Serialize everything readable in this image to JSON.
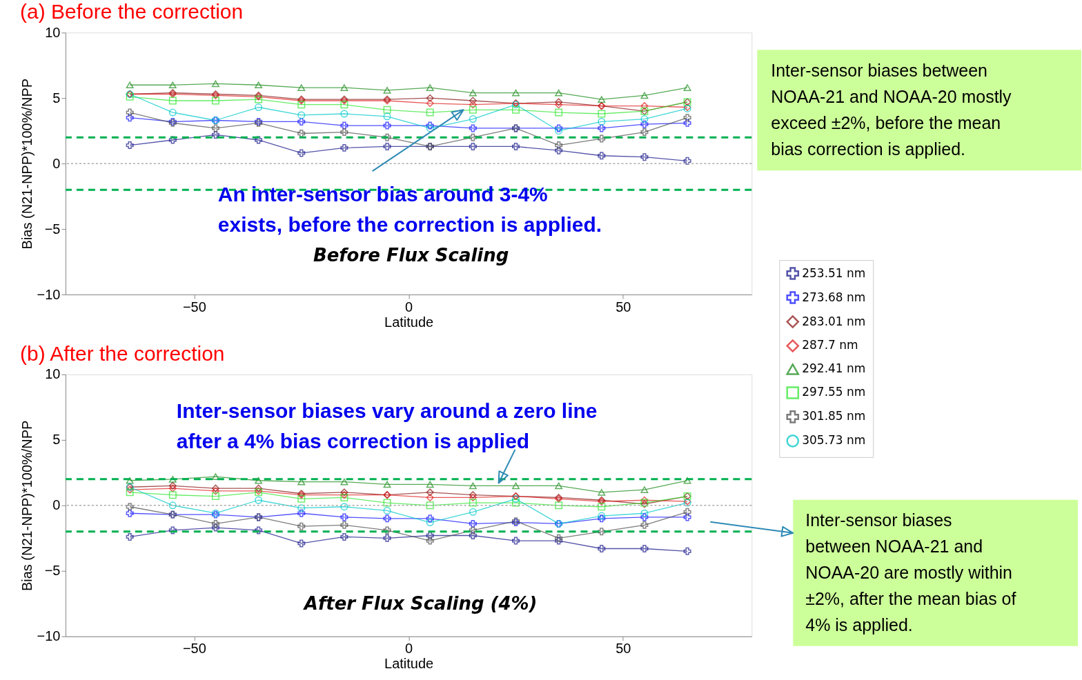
{
  "chart_data": [
    {
      "type": "line",
      "title": "(a) Before the correction",
      "xlabel": "Latitude",
      "ylabel": "Bias (N21-NPP)*100%/NPP",
      "x": [
        -65,
        -55,
        -45,
        -35,
        -25,
        -15,
        -5,
        5,
        15,
        25,
        35,
        45,
        55,
        65
      ],
      "xlim": [
        -80,
        80
      ],
      "xticks": [
        -50,
        0,
        50
      ],
      "ylim": [
        -10,
        10
      ],
      "yticks": [
        -10,
        -5,
        0,
        5,
        10
      ],
      "grid": false,
      "legend": "right",
      "line_style": "solid",
      "series": [
        {
          "name": "253.51 nm",
          "color": "#1a1a8c",
          "marker": "cross",
          "values": [
            1.4,
            1.8,
            2.2,
            1.8,
            0.8,
            1.2,
            1.3,
            1.3,
            1.3,
            1.3,
            1.0,
            0.6,
            0.5,
            0.2
          ]
        },
        {
          "name": "273.68 nm",
          "color": "#1414ff",
          "marker": "cross",
          "values": [
            3.5,
            3.2,
            3.3,
            3.2,
            3.2,
            2.9,
            2.9,
            2.9,
            2.7,
            2.7,
            2.7,
            2.7,
            3.0,
            3.1
          ]
        },
        {
          "name": "283.01 nm",
          "color": "#8b1a1a",
          "marker": "diamond",
          "values": [
            5.3,
            5.4,
            5.3,
            5.2,
            4.9,
            4.9,
            4.9,
            5.0,
            4.8,
            4.6,
            4.7,
            4.4,
            4.0,
            4.7
          ]
        },
        {
          "name": "287.7 nm",
          "color": "#e02020",
          "marker": "diamond",
          "values": [
            5.3,
            5.3,
            5.2,
            5.1,
            4.8,
            4.8,
            4.8,
            4.6,
            4.5,
            4.6,
            4.5,
            4.4,
            4.4,
            4.3
          ]
        },
        {
          "name": "292.41 nm",
          "color": "#1e8c1e",
          "marker": "triangle",
          "values": [
            6.0,
            6.0,
            6.1,
            6.0,
            5.8,
            5.8,
            5.6,
            5.8,
            5.4,
            5.4,
            5.4,
            4.9,
            5.2,
            5.8
          ]
        },
        {
          "name": "297.55 nm",
          "color": "#33e633",
          "marker": "square",
          "values": [
            5.1,
            4.8,
            4.8,
            4.9,
            4.5,
            4.5,
            4.1,
            3.9,
            4.1,
            4.1,
            3.9,
            3.8,
            4.0,
            4.7
          ]
        },
        {
          "name": "301.85 nm",
          "color": "#505050",
          "marker": "cross",
          "values": [
            3.9,
            3.1,
            2.7,
            3.1,
            2.3,
            2.4,
            2.0,
            1.3,
            2.0,
            2.7,
            1.4,
            1.9,
            2.4,
            3.5
          ]
        },
        {
          "name": "305.73 nm",
          "color": "#00c8c8",
          "marker": "circle",
          "values": [
            5.3,
            3.9,
            3.3,
            4.3,
            3.7,
            3.8,
            3.6,
            2.7,
            3.4,
            4.5,
            2.5,
            3.2,
            3.4,
            4.2
          ]
        }
      ],
      "ref_lines": [
        {
          "axis": "y",
          "value": 2,
          "color": "#00b050",
          "line_style": "dashed"
        },
        {
          "axis": "y",
          "value": -2,
          "color": "#00b050",
          "line_style": "dashed"
        },
        {
          "axis": "y",
          "value": 0,
          "color": "#aaaaaa",
          "line_style": "dotted"
        }
      ],
      "annotations": [
        {
          "text": "An inter-sensor bias around 3-4%\nexists, before the correction is applied.",
          "x": 12.8,
          "y": 4.1
        },
        "Before Flux Scaling",
        "Inter-sensor biases between\nNOAA-21 and NOAA-20 mostly\nexceed ±2%, before the mean\nbias correction is applied."
      ]
    },
    {
      "type": "line",
      "title": "(b) After the correction",
      "xlabel": "Latitude",
      "ylabel": "Bias (N21-NPP)*100%/NPP",
      "x": [
        -65,
        -55,
        -45,
        -35,
        -25,
        -15,
        -5,
        5,
        15,
        25,
        35,
        45,
        55,
        65
      ],
      "xlim": [
        -80,
        80
      ],
      "xticks": [
        -50,
        0,
        50
      ],
      "ylim": [
        -10,
        10
      ],
      "yticks": [
        -10,
        -5,
        0,
        5,
        10
      ],
      "grid": false,
      "legend": "right",
      "line_style": "solid",
      "series": [
        {
          "name": "253.51 nm",
          "color": "#1a1a8c",
          "marker": "cross",
          "values": [
            -2.4,
            -1.9,
            -1.7,
            -1.9,
            -2.9,
            -2.4,
            -2.5,
            -2.3,
            -2.3,
            -2.7,
            -2.7,
            -3.3,
            -3.3,
            -3.5
          ]
        },
        {
          "name": "273.68 nm",
          "color": "#1414ff",
          "marker": "cross",
          "values": [
            -0.6,
            -0.7,
            -0.7,
            -0.9,
            -0.6,
            -0.9,
            -1.0,
            -1.0,
            -1.4,
            -1.3,
            -1.4,
            -1.0,
            -0.9,
            -0.9
          ]
        },
        {
          "name": "283.01 nm",
          "color": "#8b1a1a",
          "marker": "diamond",
          "values": [
            1.4,
            1.5,
            1.3,
            1.3,
            0.9,
            1.0,
            0.8,
            1.0,
            0.8,
            0.7,
            0.6,
            0.4,
            0.1,
            0.7
          ]
        },
        {
          "name": "287.7 nm",
          "color": "#e02020",
          "marker": "diamond",
          "values": [
            1.2,
            1.3,
            1.1,
            1.1,
            0.8,
            0.8,
            0.8,
            0.6,
            0.6,
            0.7,
            0.5,
            0.3,
            0.4,
            0.3
          ]
        },
        {
          "name": "292.41 nm",
          "color": "#1e8c1e",
          "marker": "triangle",
          "values": [
            1.9,
            2.0,
            2.2,
            1.9,
            1.8,
            1.8,
            1.6,
            1.6,
            1.5,
            1.5,
            1.5,
            1.0,
            1.2,
            1.9
          ]
        },
        {
          "name": "297.55 nm",
          "color": "#33e633",
          "marker": "square",
          "values": [
            1.0,
            0.8,
            0.7,
            1.0,
            0.5,
            0.6,
            0.2,
            0.0,
            0.2,
            0.2,
            0.0,
            -0.1,
            0.2,
            0.7
          ]
        },
        {
          "name": "301.85 nm",
          "color": "#505050",
          "marker": "cross",
          "values": [
            -0.1,
            -0.7,
            -1.4,
            -0.9,
            -1.6,
            -1.5,
            -1.9,
            -2.7,
            -1.9,
            -1.2,
            -2.5,
            -2.0,
            -1.5,
            -0.5
          ]
        },
        {
          "name": "305.73 nm",
          "color": "#00c8c8",
          "marker": "circle",
          "values": [
            1.4,
            0.0,
            -0.6,
            0.4,
            -0.2,
            -0.1,
            -0.4,
            -1.3,
            -0.5,
            0.5,
            -1.4,
            -0.8,
            -0.6,
            0.2
          ]
        }
      ],
      "ref_lines": [
        {
          "axis": "y",
          "value": 2,
          "color": "#00b050",
          "line_style": "dashed"
        },
        {
          "axis": "y",
          "value": -2,
          "color": "#00b050",
          "line_style": "dashed"
        },
        {
          "axis": "y",
          "value": 0,
          "color": "#aaaaaa",
          "line_style": "dotted"
        }
      ],
      "annotations": [
        {
          "text": "Inter-sensor biases vary around a zero line\nafter a 4% bias correction is applied",
          "x": 21,
          "y": 1.7
        },
        "After Flux Scaling (4%)",
        "Inter-sensor biases\nbetween NOAA-21 and\nNOAA-20 are mostly within\n±2%, after the mean bias of\n4% is applied."
      ]
    }
  ]
}
